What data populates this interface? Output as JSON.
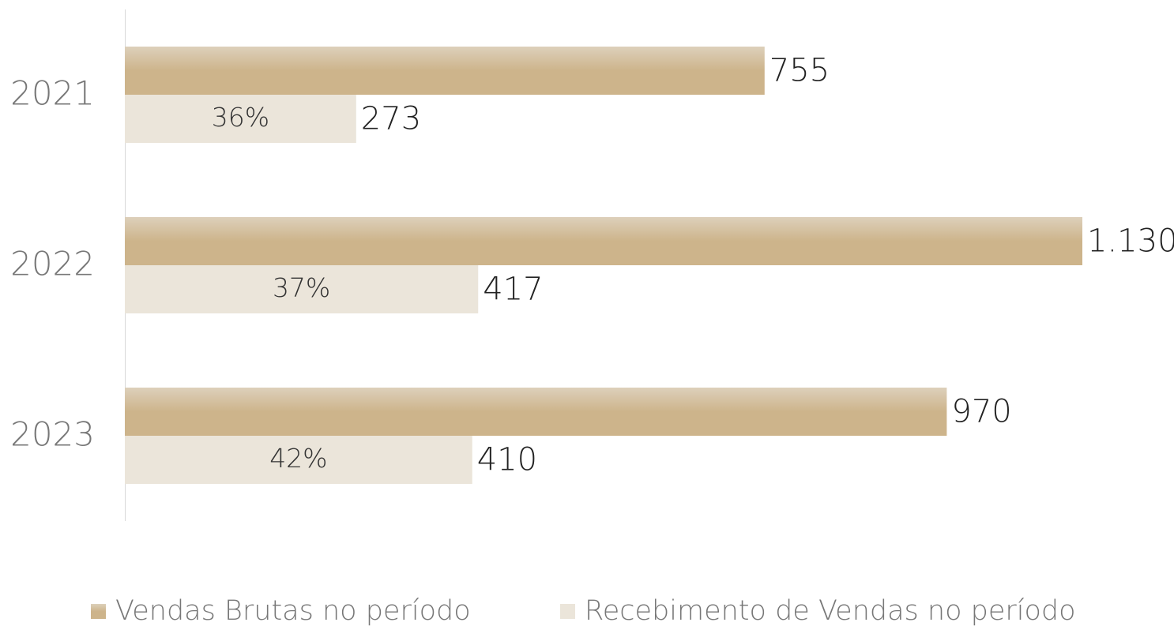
{
  "chart_data": {
    "type": "hbar",
    "categories": [
      "2021",
      "2022",
      "2023"
    ],
    "series": [
      {
        "name": "Vendas Brutas no período",
        "color": "#cdb48b",
        "values": [
          755,
          1130,
          970
        ],
        "value_labels": [
          "755",
          "1.130",
          "970"
        ]
      },
      {
        "name": "Recebimento de Vendas no período",
        "color": "#ebe5da",
        "values": [
          273,
          417,
          410
        ],
        "annotations": [
          "36%",
          "37%",
          "42%"
        ]
      }
    ],
    "legend": "bottom"
  }
}
